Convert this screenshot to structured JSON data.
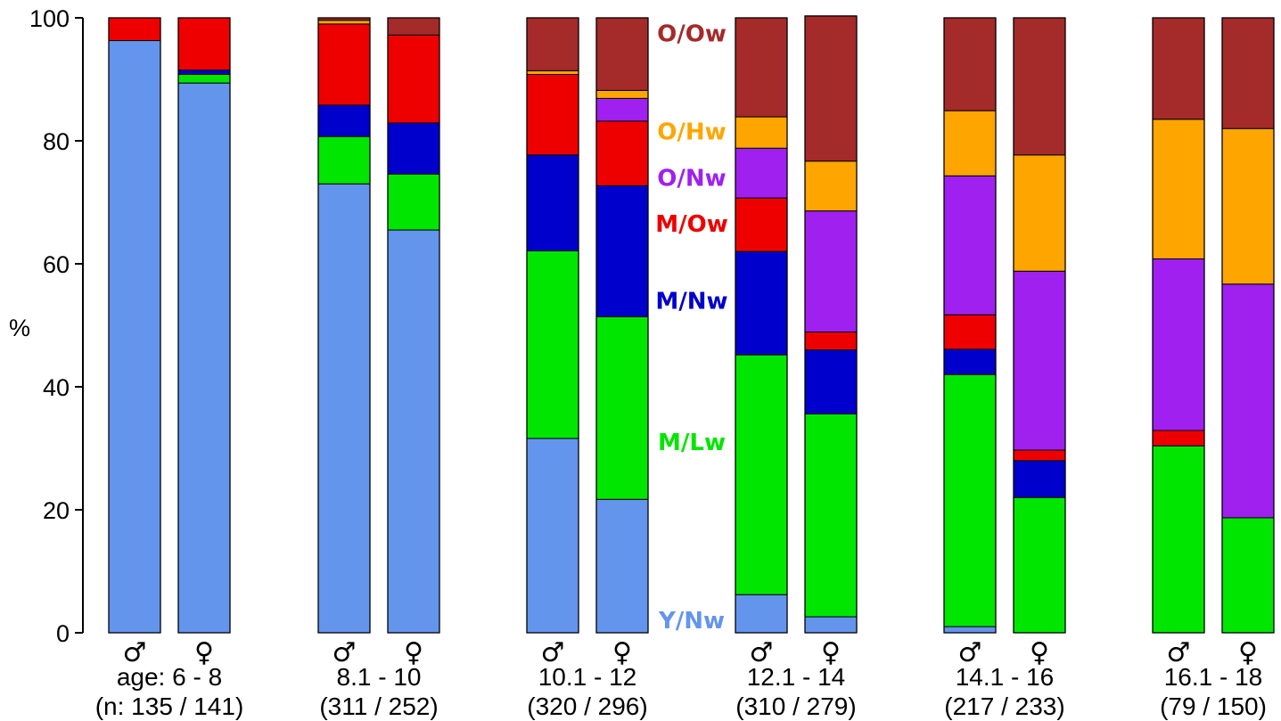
{
  "chart_data": {
    "type": "bar",
    "stacked": true,
    "title": "",
    "xlabel": "",
    "ylabel": "%",
    "ylim": [
      0,
      100
    ],
    "yticks": [
      0,
      20,
      40,
      60,
      80,
      100
    ],
    "grid": false,
    "legend": "right side labels",
    "groups": [
      {
        "label": "age: 6 - 8",
        "n_label": "(n: 135 / 141)"
      },
      {
        "label": "8.1 - 10",
        "n_label": "(311 / 252)"
      },
      {
        "label": "10.1 - 12",
        "n_label": "(320 / 296)"
      },
      {
        "label": "12.1 - 14",
        "n_label": "(310 / 279)"
      },
      {
        "label": "14.1 - 16",
        "n_label": "(217 / 233)"
      },
      {
        "label": "16.1 - 18",
        "n_label": "(79 / 150)"
      }
    ],
    "sex_symbols": [
      "♂",
      "♀"
    ],
    "series": [
      {
        "name": "Y/Nw",
        "color": "#6495ED",
        "values": [
          [
            96.3,
            89.4
          ],
          [
            73.0,
            65.5
          ],
          [
            31.6,
            21.7
          ],
          [
            6.2,
            2.6
          ],
          [
            1.0,
            0.0
          ],
          [
            0.0,
            0.0
          ]
        ]
      },
      {
        "name": "M/Lw",
        "color": "#00E600",
        "values": [
          [
            0.0,
            1.4
          ],
          [
            7.7,
            9.1
          ],
          [
            30.5,
            29.7
          ],
          [
            39.0,
            33.0
          ],
          [
            41.0,
            22.0
          ],
          [
            30.4,
            18.7
          ]
        ]
      },
      {
        "name": "M/Nw",
        "color": "#0000CD",
        "values": [
          [
            0.0,
            0.7
          ],
          [
            5.1,
            8.3
          ],
          [
            15.6,
            21.3
          ],
          [
            16.8,
            10.4
          ],
          [
            4.1,
            6.0
          ],
          [
            0.0,
            0.0
          ]
        ]
      },
      {
        "name": "M/Ow",
        "color": "#EE0000",
        "values": [
          [
            3.7,
            8.5
          ],
          [
            13.2,
            14.3
          ],
          [
            13.1,
            10.5
          ],
          [
            8.7,
            2.9
          ],
          [
            5.6,
            1.7
          ],
          [
            2.5,
            0.0
          ]
        ]
      },
      {
        "name": "O/Nw",
        "color": "#A020F0",
        "values": [
          [
            0.0,
            0.0
          ],
          [
            0.0,
            0.0
          ],
          [
            0.0,
            3.7
          ],
          [
            8.1,
            19.7
          ],
          [
            22.6,
            29.1
          ],
          [
            27.9,
            38.0
          ]
        ]
      },
      {
        "name": "O/Hw",
        "color": "#FFA500",
        "values": [
          [
            0.0,
            0.0
          ],
          [
            0.6,
            0.0
          ],
          [
            0.6,
            1.3
          ],
          [
            5.1,
            8.1
          ],
          [
            10.6,
            18.9
          ],
          [
            22.7,
            25.3
          ]
        ]
      },
      {
        "name": "O/Ow",
        "color": "#A52A2A",
        "values": [
          [
            0.0,
            0.0
          ],
          [
            0.4,
            2.8
          ],
          [
            8.6,
            11.8
          ],
          [
            16.1,
            23.6
          ],
          [
            15.1,
            22.3
          ],
          [
            16.5,
            18.0
          ]
        ]
      }
    ]
  }
}
